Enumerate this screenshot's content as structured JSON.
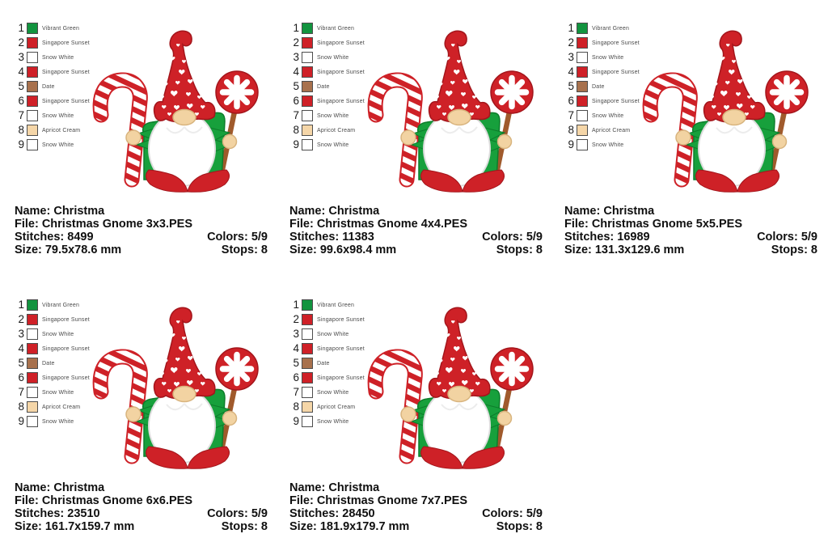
{
  "legend": {
    "items": [
      {
        "num": "1",
        "name": "Vibrant Green",
        "color": "#12943f"
      },
      {
        "num": "2",
        "name": "Singapore Sunset",
        "color": "#cf2027"
      },
      {
        "num": "3",
        "name": "Snow White",
        "color": "#ffffff"
      },
      {
        "num": "4",
        "name": "Singapore Sunset",
        "color": "#cf2027"
      },
      {
        "num": "5",
        "name": "Date",
        "color": "#a8714d"
      },
      {
        "num": "6",
        "name": "Singapore Sunset",
        "color": "#cf2027"
      },
      {
        "num": "7",
        "name": "Snow White",
        "color": "#ffffff"
      },
      {
        "num": "8",
        "name": "Apricot Cream",
        "color": "#f5d6a8"
      },
      {
        "num": "9",
        "name": "Snow White",
        "color": "#ffffff"
      }
    ]
  },
  "artwork": {
    "description": "Christmas gnome in heart-patterned hat holding a candy cane and a peppermint lollipop",
    "colors": {
      "red": "#ce2127",
      "red_dark": "#a3151b",
      "green": "#17a03c",
      "green_dark": "#0d7c2b",
      "white": "#ffffff",
      "beard_stroke": "#dddddd",
      "apricot": "#f2d3a2",
      "apricot_dark": "#d8b47e",
      "stick_brown": "#a05a2c"
    }
  },
  "panels": [
    {
      "name_line": "Name: Christma",
      "file_line": "File: Christmas Gnome 3x3.PES",
      "stitches_line": "Stitches: 8499",
      "colors_line": "Colors: 5/9",
      "size_line": "Size: 79.5x78.6 mm",
      "stops_line": "Stops: 8"
    },
    {
      "name_line": "Name: Christma",
      "file_line": "File: Christmas Gnome 4x4.PES",
      "stitches_line": "Stitches: 11383",
      "colors_line": "Colors: 5/9",
      "size_line": "Size: 99.6x98.4 mm",
      "stops_line": "Stops: 8"
    },
    {
      "name_line": "Name: Christma",
      "file_line": "File: Christmas Gnome 5x5.PES",
      "stitches_line": "Stitches: 16989",
      "colors_line": "Colors: 5/9",
      "size_line": "Size: 131.3x129.6 mm",
      "stops_line": "Stops: 8"
    },
    {
      "name_line": "Name: Christma",
      "file_line": "File: Christmas Gnome 6x6.PES",
      "stitches_line": "Stitches: 23510",
      "colors_line": "Colors: 5/9",
      "size_line": "Size: 161.7x159.7 mm",
      "stops_line": "Stops: 8"
    },
    {
      "name_line": "Name: Christma",
      "file_line": "File: Christmas Gnome 7x7.PES",
      "stitches_line": "Stitches: 28450",
      "colors_line": "Colors: 5/9",
      "size_line": "Size: 181.9x179.7 mm",
      "stops_line": "Stops: 8"
    }
  ]
}
